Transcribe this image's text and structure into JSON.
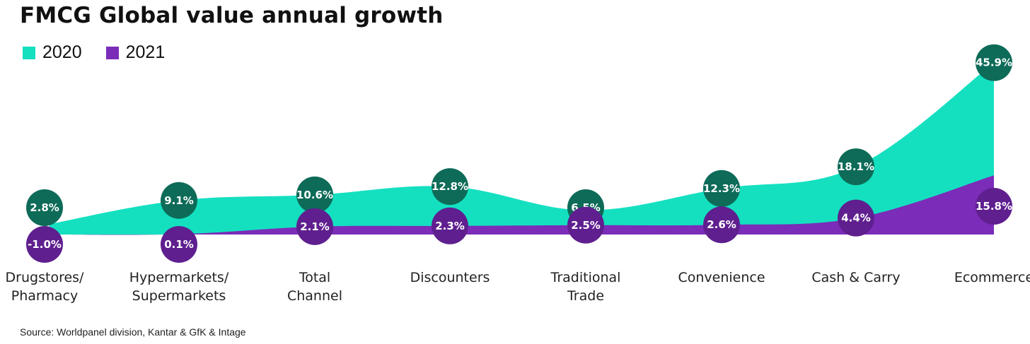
{
  "chart_data": {
    "type": "area",
    "title": "FMCG Global value annual growth",
    "categories": [
      [
        "Drugstores/",
        "Pharmacy"
      ],
      [
        "Hypermarkets/",
        "Supermarkets"
      ],
      [
        "Total",
        "Channel"
      ],
      [
        "Discounters"
      ],
      [
        "Traditional",
        "Trade"
      ],
      [
        "Convenience"
      ],
      [
        "Cash & Carry"
      ],
      [
        "Ecommerce"
      ]
    ],
    "series": [
      {
        "name": "2020",
        "color": "#14e0c0",
        "bubble_color": "#0d6b58",
        "values": [
          2.8,
          9.1,
          10.6,
          12.8,
          6.5,
          12.3,
          18.1,
          45.9
        ],
        "labels": [
          "2.8%",
          "9.1%",
          "10.6%",
          "12.8%",
          "6.5%",
          "12.3%",
          "18.1%",
          "45.9%"
        ]
      },
      {
        "name": "2021",
        "color": "#7b2cb8",
        "bubble_color": "#5f1f8f",
        "values": [
          -1.0,
          0.1,
          2.1,
          2.3,
          2.5,
          2.6,
          4.4,
          15.8
        ],
        "labels": [
          "-1.0%",
          "0.1%",
          "2.1%",
          "2.3%",
          "2.5%",
          "2.6%",
          "4.4%",
          "15.8%"
        ]
      }
    ],
    "grid": false,
    "legend_position": "top-left",
    "source": "Source: Worldpanel division, Kantar & GfK & Intage"
  }
}
